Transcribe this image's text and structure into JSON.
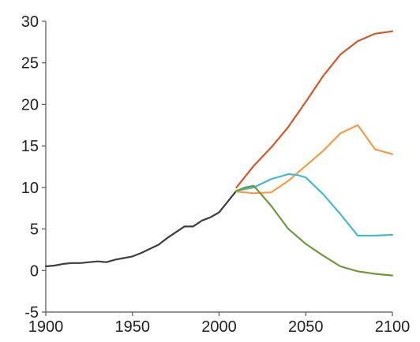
{
  "chart_data": {
    "type": "line",
    "title": "",
    "xlabel": "",
    "ylabel": "",
    "xlim": [
      1900,
      2100
    ],
    "ylim": [
      -5,
      30
    ],
    "xticks": [
      1900,
      1950,
      2000,
      2050,
      2100
    ],
    "yticks": [
      -5,
      0,
      5,
      10,
      15,
      20,
      25,
      30
    ],
    "grid": false,
    "legend": "none",
    "series": [
      {
        "color": "#3d3d3d",
        "x": [
          1900,
          1905,
          1910,
          1915,
          1920,
          1925,
          1930,
          1935,
          1940,
          1945,
          1950,
          1955,
          1960,
          1965,
          1970,
          1975,
          1980,
          1985,
          1990,
          1995,
          2000,
          2005,
          2010
        ],
        "y": [
          0.5,
          0.6,
          0.8,
          0.9,
          0.9,
          1.0,
          1.1,
          1.0,
          1.3,
          1.5,
          1.7,
          2.1,
          2.6,
          3.1,
          3.9,
          4.6,
          5.3,
          5.3,
          6.0,
          6.4,
          7.0,
          8.3,
          9.6
        ]
      },
      {
        "color": "#d4572a",
        "x": [
          2010,
          2020,
          2030,
          2040,
          2050,
          2060,
          2070,
          2080,
          2090,
          2100
        ],
        "y": [
          10.0,
          12.6,
          14.8,
          17.3,
          20.3,
          23.4,
          26.0,
          27.6,
          28.5,
          28.8
        ]
      },
      {
        "color": "#f59b48",
        "x": [
          2010,
          2020,
          2030,
          2040,
          2050,
          2060,
          2070,
          2080,
          2090,
          2100
        ],
        "y": [
          9.5,
          9.3,
          9.4,
          10.8,
          12.6,
          14.4,
          16.5,
          17.5,
          14.6,
          14.0
        ]
      },
      {
        "color": "#45b9cc",
        "x": [
          2010,
          2020,
          2030,
          2040,
          2045,
          2050,
          2060,
          2070,
          2080,
          2090,
          2100
        ],
        "y": [
          9.6,
          10.0,
          11.0,
          11.6,
          11.5,
          11.2,
          9.2,
          6.8,
          4.2,
          4.2,
          4.3
        ]
      },
      {
        "color": "#6c9a3a",
        "x": [
          2010,
          2015,
          2020,
          2030,
          2040,
          2050,
          2060,
          2070,
          2080,
          2090,
          2100
        ],
        "y": [
          9.6,
          10.0,
          10.2,
          7.8,
          5.0,
          3.2,
          1.8,
          0.5,
          -0.1,
          -0.4,
          -0.6
        ]
      }
    ]
  }
}
